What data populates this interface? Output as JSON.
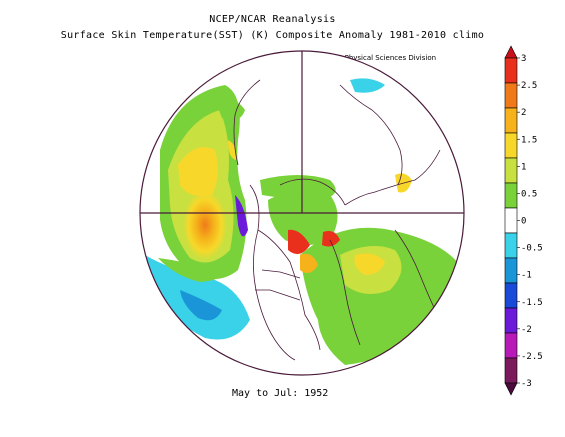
{
  "titles": {
    "line1": "NCEP/NCAR Reanalysis",
    "line2": "Surface Skin Temperature(SST) (K) Composite Anomaly 1981-2010 climo",
    "credit": "NOAA/ESRL Physical Sciences Division",
    "period": "May to Jul: 1952"
  },
  "map": {
    "projection": "north-polar-stereographic",
    "ocean_neutral": "#ffffff",
    "coastline_color": "#4a1a3a"
  },
  "colorbar": {
    "tick_labels": [
      "3",
      "2.5",
      "2",
      "1.5",
      "1",
      "0.5",
      "0",
      "-0.5",
      "-1",
      "-1.5",
      "-2",
      "-2.5",
      "-3"
    ],
    "colors": [
      "#e8301c",
      "#f07a1a",
      "#f5b21a",
      "#f7d82a",
      "#c8e040",
      "#7ad23a",
      "#ffffff",
      "#3ad2e8",
      "#1a96d8",
      "#1a4ad8",
      "#6a1ad8",
      "#b81ab8",
      "#7a1a5a"
    ],
    "over_color": "#c8101a",
    "under_color": "#4a0a3a"
  }
}
